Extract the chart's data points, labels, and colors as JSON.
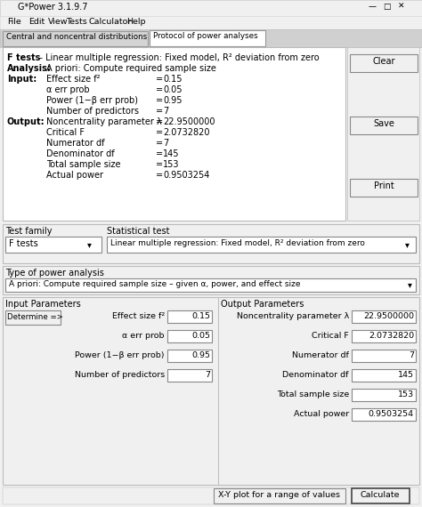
{
  "title": "G*Power 3.1.9.7",
  "menu_items": [
    "File",
    "Edit",
    "View",
    "Tests",
    "Calculator",
    "Help"
  ],
  "menu_x": [
    8,
    32,
    54,
    74,
    100,
    142
  ],
  "tab1": "Central and noncentral distributions",
  "tab2": "Protocol of power analyses",
  "buttons_right": [
    "Clear",
    "Save",
    "Print"
  ],
  "test_family_label": "Test family",
  "test_family_value": "F tests",
  "stat_test_label": "Statistical test",
  "stat_test_value": "Linear multiple regression: Fixed model, R² deviation from zero",
  "power_type_label": "Type of power analysis",
  "power_type_value": "A priori: Compute required sample size – given α, power, and effect size",
  "input_params_label": "Input Parameters",
  "determine_btn": "Determine =>",
  "input_params": [
    [
      "Effect size f²",
      "0.15"
    ],
    [
      "α err prob",
      "0.05"
    ],
    [
      "Power (1−β err prob)",
      "0.95"
    ],
    [
      "Number of predictors",
      "7"
    ]
  ],
  "output_params_label": "Output Parameters",
  "output_params": [
    [
      "Noncentrality parameter λ",
      "22.9500000"
    ],
    [
      "Critical F",
      "2.0732820"
    ],
    [
      "Numerator df",
      "7"
    ],
    [
      "Denominator df",
      "145"
    ],
    [
      "Total sample size",
      "153"
    ],
    [
      "Actual power",
      "0.9503254"
    ]
  ],
  "bottom_buttons": [
    "X-Y plot for a range of values",
    "Calculate"
  ],
  "bg_color": "#f0f0f0",
  "white": "#ffffff",
  "border_light": "#bbbbbb",
  "border_dark": "#888888",
  "title_bar_bg": "#f0f0f0"
}
